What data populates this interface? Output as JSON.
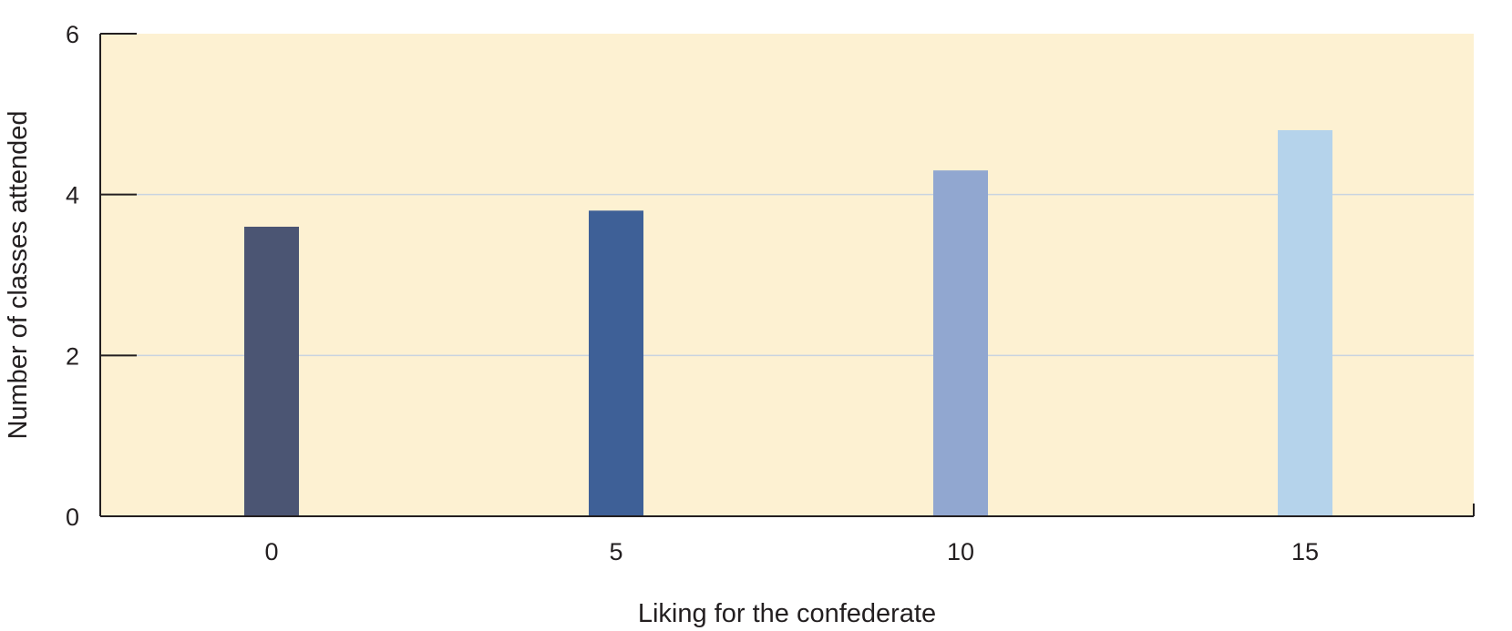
{
  "chart_data": {
    "type": "bar",
    "title": "",
    "xlabel": "Liking for the confederate",
    "ylabel": "Number of classes attended",
    "categories": [
      "0",
      "5",
      "10",
      "15"
    ],
    "values": [
      3.6,
      3.8,
      4.3,
      4.8
    ],
    "ylim": [
      0,
      6
    ],
    "yticks": [
      "0",
      "2",
      "4",
      "6"
    ],
    "grid": true,
    "colors": {
      "plot_background": "#fdf1d2",
      "grid": "#c9d4e0",
      "axis": "#231f20",
      "bars": [
        "#4b5573",
        "#3e6097",
        "#91a7d0",
        "#b5d3eb"
      ]
    }
  }
}
